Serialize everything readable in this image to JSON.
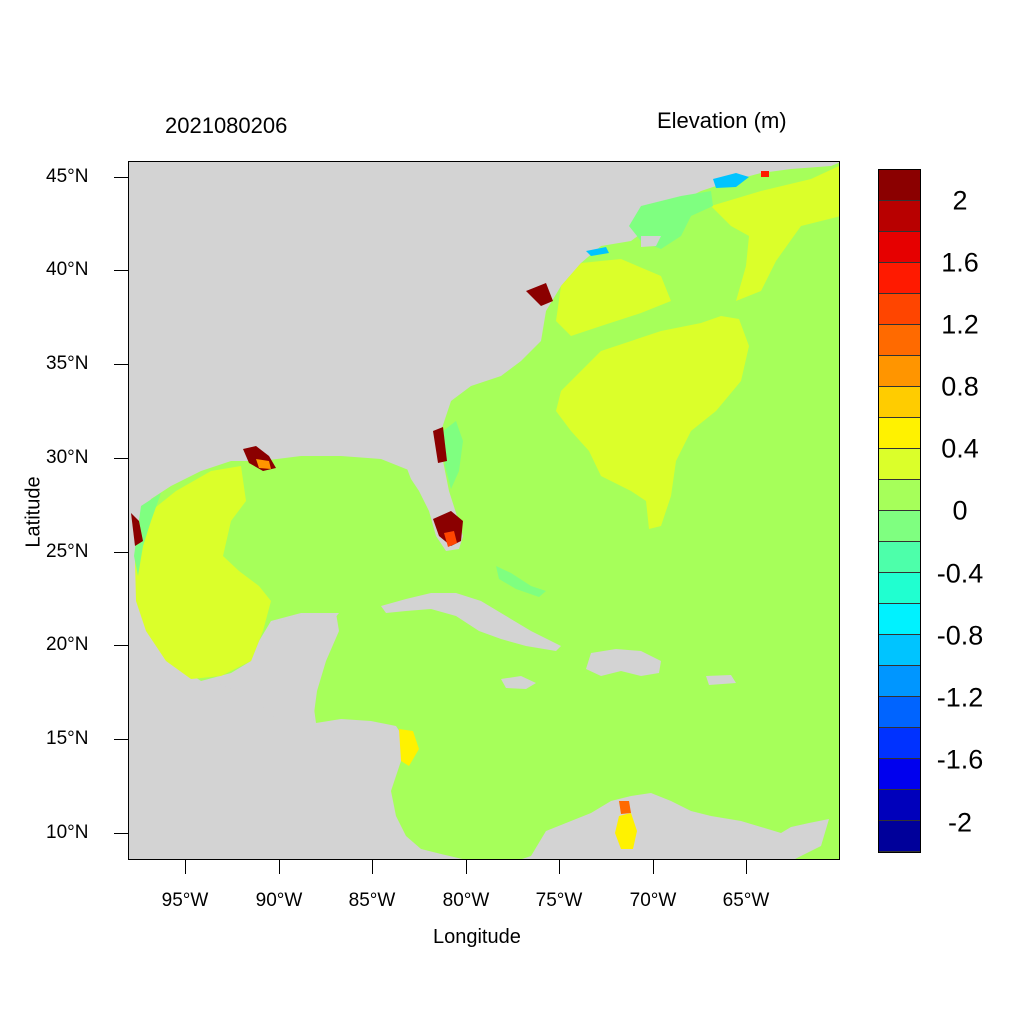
{
  "map": {
    "timestamp": "2021080206",
    "variable_title": "Elevation (m)",
    "x_axis_title": "Longitude",
    "y_axis_title": "Latitude",
    "lat_ticks": [
      "45°N",
      "40°N",
      "35°N",
      "30°N",
      "25°N",
      "20°N",
      "15°N",
      "10°N"
    ],
    "lon_ticks": [
      "95°W",
      "90°W",
      "85°W",
      "80°W",
      "75°W",
      "70°W",
      "65°W"
    ],
    "land_color": "#d3d3d3",
    "ocean_base_color": "#a6ff5a",
    "colorbar": {
      "labels": [
        "2",
        "1.6",
        "1.2",
        "0.8",
        "0.4",
        "0",
        "-0.4",
        "-0.8",
        "-1.2",
        "-1.6",
        "-2"
      ],
      "colors": [
        "#8b0000",
        "#b80000",
        "#e60000",
        "#ff1a00",
        "#ff4500",
        "#ff6a00",
        "#ff9500",
        "#ffcc00",
        "#fff200",
        "#dbff2a",
        "#a6ff5a",
        "#7fff80",
        "#4dffaa",
        "#20ffd0",
        "#00f2ff",
        "#00c4ff",
        "#0096ff",
        "#0064ff",
        "#0032ff",
        "#0000ee",
        "#0000bb",
        "#00009a"
      ]
    }
  }
}
